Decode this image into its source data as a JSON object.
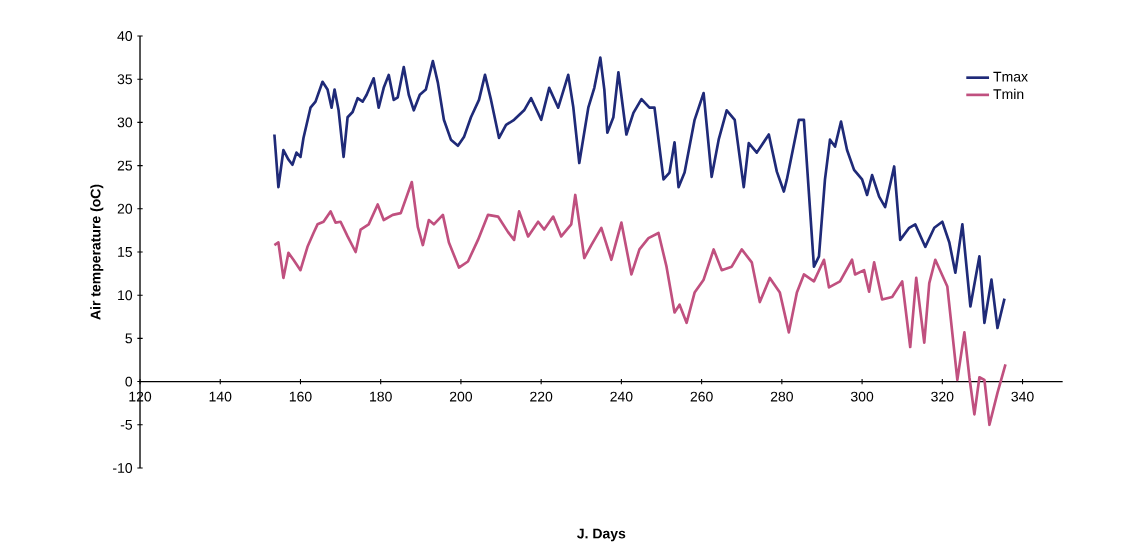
{
  "chart_data": {
    "type": "line",
    "xlabel": "J. Days",
    "ylabel": "Air temperature  (oC)",
    "xlim": [
      120,
      350
    ],
    "xticks": [
      120,
      140,
      160,
      180,
      200,
      220,
      240,
      260,
      280,
      300,
      320,
      340
    ],
    "ylim": [
      -10,
      40
    ],
    "yticks": [
      -10,
      -5,
      0,
      5,
      10,
      15,
      20,
      25,
      30,
      35,
      40
    ],
    "grid": false,
    "legend": "top right",
    "marker": "none",
    "line_style": "solid",
    "series": [
      {
        "name": "Tmax",
        "color": "#1f2a78",
        "x": [
          153.5,
          154.5,
          155.75,
          157,
          158,
          159,
          160,
          160.75,
          162.5,
          163.75,
          165.5,
          166.75,
          167.75,
          168.5,
          169.5,
          170.75,
          171.75,
          173,
          174.25,
          175.5,
          176.5,
          178.25,
          179.5,
          180.75,
          182,
          183.25,
          184.25,
          185.75,
          187,
          188.25,
          189.75,
          191.25,
          193,
          194.25,
          195.75,
          197.5,
          199.25,
          200.75,
          202.5,
          204.5,
          206,
          207.5,
          209.5,
          211.25,
          213.25,
          215.75,
          217.5,
          220,
          222,
          224.25,
          226.75,
          228,
          229.5,
          231.75,
          233.25,
          234.75,
          235.75,
          236.5,
          238,
          239.25,
          241.25,
          243,
          245,
          247,
          248.25,
          250.5,
          252,
          253.25,
          254.25,
          255.75,
          258.25,
          260.5,
          262.5,
          264.25,
          266.25,
          268.25,
          270.5,
          271.75,
          273.75,
          276.75,
          278.75,
          280.5,
          281.25,
          284.25,
          285.5,
          288,
          289.25,
          290.75,
          292,
          293.25,
          294.75,
          296.25,
          298,
          300,
          301.25,
          302.5,
          304.25,
          305.75,
          308,
          309.5,
          311.75,
          313.25,
          315.75,
          318,
          320,
          321.75,
          323.25,
          325,
          327,
          329.25,
          330.5,
          332.25,
          333.75,
          335.5
        ],
        "values": [
          28.6,
          22.5,
          26.8,
          25.7,
          25.1,
          26.5,
          26,
          28.2,
          31.7,
          32.4,
          34.7,
          33.8,
          31.7,
          33.8,
          31.4,
          26,
          30.6,
          31.2,
          32.8,
          32.4,
          33.2,
          35.1,
          31.7,
          34,
          35.5,
          32.6,
          32.9,
          36.4,
          33.2,
          31.4,
          33.2,
          33.8,
          37.1,
          34.6,
          30.3,
          28,
          27.3,
          28.3,
          30.6,
          32.6,
          35.5,
          32.6,
          28.2,
          29.7,
          30.3,
          31.4,
          32.8,
          30.3,
          34,
          31.7,
          35.5,
          31.8,
          25.3,
          31.7,
          34,
          37.5,
          33.8,
          28.8,
          30.6,
          35.8,
          28.6,
          31.1,
          32.7,
          31.7,
          31.7,
          23.4,
          24.2,
          27.7,
          22.5,
          24.2,
          30.3,
          33.4,
          23.7,
          28,
          31.4,
          30.3,
          22.5,
          27.6,
          26.5,
          28.6,
          24.3,
          22,
          23.4,
          30.3,
          30.3,
          13.3,
          14.5,
          23.4,
          28,
          27.2,
          30.1,
          26.8,
          24.5,
          23.4,
          21.6,
          23.9,
          21.4,
          20.2,
          24.9,
          16.4,
          17.8,
          18.2,
          15.6,
          17.8,
          18.5,
          16.1,
          12.6,
          18.2,
          8.7,
          14.5,
          6.8,
          11.8,
          6.2,
          9.6
        ]
      },
      {
        "name": "Tmin",
        "color": "#c0507f",
        "x": [
          153.5,
          154.5,
          155.75,
          157,
          158.25,
          160,
          161.75,
          163.25,
          164.25,
          165.75,
          167.5,
          168.75,
          170,
          171.75,
          173.75,
          175,
          177,
          179.25,
          180.75,
          183,
          185,
          187.75,
          189.25,
          190.5,
          192,
          193.25,
          195.5,
          197,
          199.5,
          201.75,
          204.25,
          206.75,
          209.25,
          211.75,
          213.25,
          214.5,
          216.75,
          219.25,
          220.75,
          223,
          225,
          227.5,
          228.5,
          230.75,
          232.5,
          235,
          237.5,
          240,
          242.5,
          244.5,
          246.75,
          249.25,
          251.25,
          253.25,
          254.5,
          256.25,
          258.25,
          260.5,
          263,
          265,
          267.5,
          270,
          272.5,
          274.5,
          277,
          279.5,
          281.75,
          283.75,
          285.5,
          288,
          290.5,
          291.75,
          294.5,
          297.5,
          298.25,
          300.5,
          301.75,
          303,
          305,
          307.5,
          310,
          312,
          313.5,
          315.5,
          316.75,
          318.25,
          321.25,
          323.75,
          325.5,
          326.75,
          328,
          329.25,
          330.5,
          331.75,
          333.75,
          335.75
        ],
        "values": [
          15.8,
          16.1,
          12,
          14.9,
          14.1,
          12.9,
          15.6,
          17.2,
          18.2,
          18.5,
          19.7,
          18.4,
          18.5,
          16.8,
          15,
          17.6,
          18.2,
          20.5,
          18.7,
          19.3,
          19.5,
          23.1,
          17.9,
          15.8,
          18.7,
          18.2,
          19.3,
          16.1,
          13.2,
          13.9,
          16.4,
          19.3,
          19.1,
          17.3,
          16.4,
          19.7,
          16.8,
          18.5,
          17.6,
          19.1,
          16.8,
          18.2,
          21.6,
          14.3,
          15.8,
          17.8,
          14.1,
          18.4,
          12.4,
          15.3,
          16.6,
          17.2,
          13.3,
          8,
          8.9,
          6.8,
          10.3,
          11.8,
          15.3,
          12.9,
          13.3,
          15.3,
          13.8,
          9.2,
          12,
          10.3,
          5.7,
          10.3,
          12.4,
          11.6,
          14.1,
          10.9,
          11.6,
          14.1,
          12.4,
          12.9,
          10.4,
          13.8,
          9.5,
          9.8,
          11.6,
          4,
          12,
          4.5,
          11.4,
          14.1,
          11,
          0.2,
          5.7,
          0.5,
          -3.8,
          0.5,
          0.2,
          -5,
          -1.3,
          2
        ]
      }
    ]
  }
}
